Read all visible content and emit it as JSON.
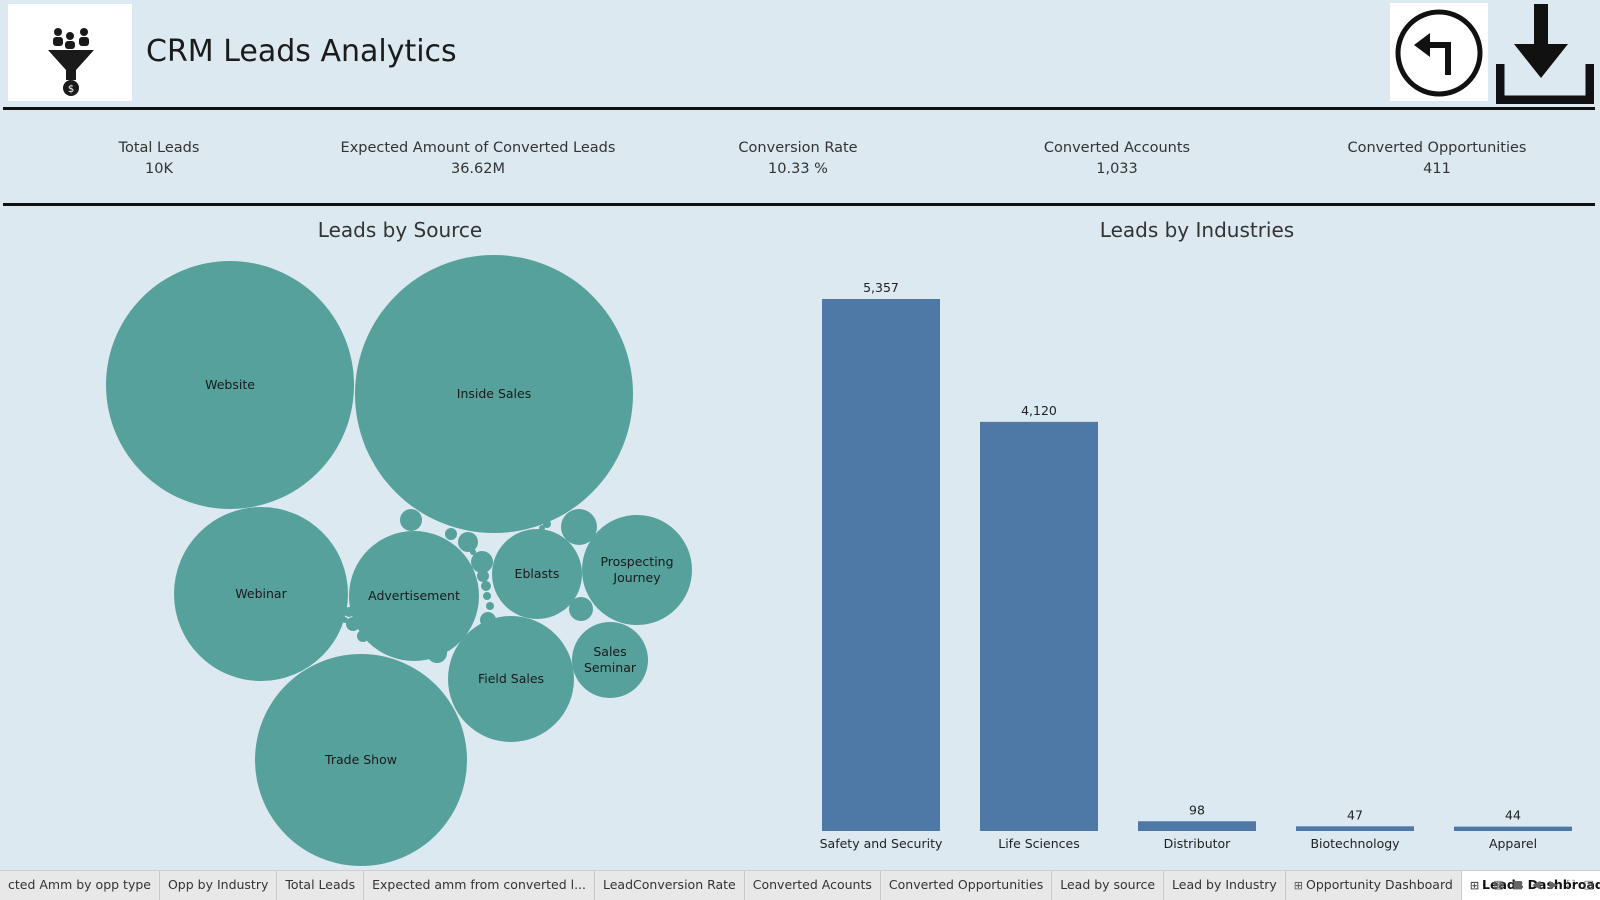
{
  "header": {
    "title": "CRM Leads Analytics"
  },
  "kpis": [
    {
      "label": "Total Leads",
      "value": "10K"
    },
    {
      "label": "Expected Amount of Converted Leads",
      "value": "36.62M"
    },
    {
      "label": "Conversion Rate",
      "value": "10.33 %"
    },
    {
      "label": "Converted Accounts",
      "value": "1,033"
    },
    {
      "label": "Converted Opportunities",
      "value": "411"
    }
  ],
  "chart_data": [
    {
      "type": "bubble",
      "title": "Leads by Source",
      "color": "#56a19c",
      "labeled_bubbles": [
        {
          "name": "Website",
          "label_lines": [
            "Website"
          ]
        },
        {
          "name": "Inside Sales",
          "label_lines": [
            "Inside Sales"
          ]
        },
        {
          "name": "Webinar",
          "label_lines": [
            "Webinar"
          ]
        },
        {
          "name": "Advertisement",
          "label_lines": [
            "Advertisement"
          ]
        },
        {
          "name": "Eblasts",
          "label_lines": [
            "Eblasts"
          ]
        },
        {
          "name": "Prospecting Journey",
          "label_lines": [
            "Prospecting",
            "Journey"
          ]
        },
        {
          "name": "Field Sales",
          "label_lines": [
            "Field Sales"
          ]
        },
        {
          "name": "Sales Seminar",
          "label_lines": [
            "Sales",
            "Seminar"
          ]
        },
        {
          "name": "Trade Show",
          "label_lines": [
            "Trade Show"
          ]
        }
      ],
      "unlabeled_bubble_count": 20
    },
    {
      "type": "bar",
      "title": "Leads by Industries",
      "color": "#4e79a7",
      "categories": [
        "Safety and Security",
        "Life Sciences",
        "Distributor",
        "Biotechnology",
        "Apparel"
      ],
      "values": [
        5357,
        4120,
        98,
        47,
        44
      ],
      "value_labels": [
        "5,357",
        "4,120",
        "98",
        "47",
        "44"
      ]
    }
  ],
  "tabs": [
    {
      "label": "cted Amm by opp type",
      "dashboard": false,
      "active": false
    },
    {
      "label": "Opp by Industry",
      "dashboard": false,
      "active": false
    },
    {
      "label": "Total Leads",
      "dashboard": false,
      "active": false
    },
    {
      "label": "Expected amm from converted l...",
      "dashboard": false,
      "active": false
    },
    {
      "label": "LeadConversion Rate",
      "dashboard": false,
      "active": false
    },
    {
      "label": "Converted Acounts",
      "dashboard": false,
      "active": false
    },
    {
      "label": "Converted Opportunities",
      "dashboard": false,
      "active": false
    },
    {
      "label": "Lead by source",
      "dashboard": false,
      "active": false
    },
    {
      "label": "Lead by Industry",
      "dashboard": false,
      "active": false
    },
    {
      "label": "Opportunity Dashboard",
      "dashboard": true,
      "active": false
    },
    {
      "label": "Leads Dashbroad",
      "dashboard": true,
      "active": true
    }
  ]
}
